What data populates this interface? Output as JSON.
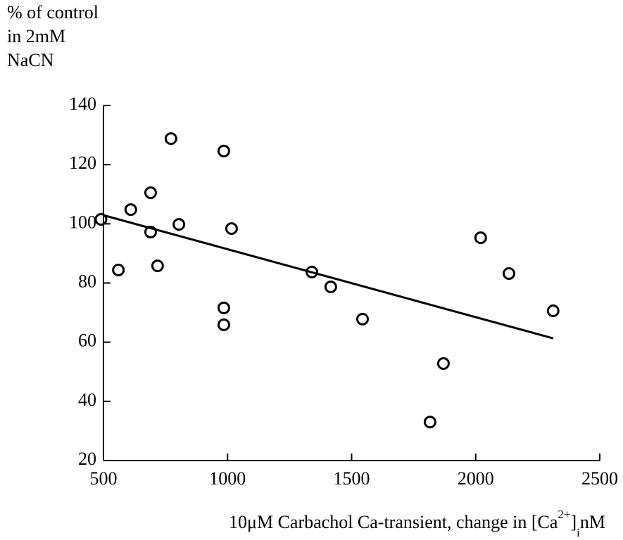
{
  "chart_data": {
    "type": "scatter",
    "ylabel": [
      "% of control",
      "in 2mM",
      "NaCN"
    ],
    "xlabel": [
      "10μM Carbachol Ca-transient, change in [Ca",
      "2+",
      "]",
      "i",
      "nM"
    ],
    "x": [
      490,
      560,
      610,
      690,
      690,
      718,
      772,
      804,
      985,
      985,
      985,
      1016,
      1340,
      1416,
      1544,
      1816,
      1870,
      2020,
      2134,
      2312
    ],
    "values": [
      101.5,
      84.4,
      104.8,
      110.5,
      97.2,
      85.8,
      128.8,
      99.8,
      124.6,
      71.6,
      65.9,
      98.4,
      83.7,
      78.7,
      67.8,
      33,
      52.8,
      95.3,
      83.2,
      70.6
    ],
    "fit": {
      "x": [
        500,
        2312
      ],
      "values": [
        102.9,
        61.3
      ]
    },
    "color": "#000000",
    "xlim": [
      500,
      2500
    ],
    "xticks": [
      500,
      1000,
      1500,
      2000,
      2500
    ],
    "ylim": [
      20,
      140
    ],
    "yticks": [
      20,
      40,
      60,
      80,
      100,
      120,
      140
    ]
  }
}
